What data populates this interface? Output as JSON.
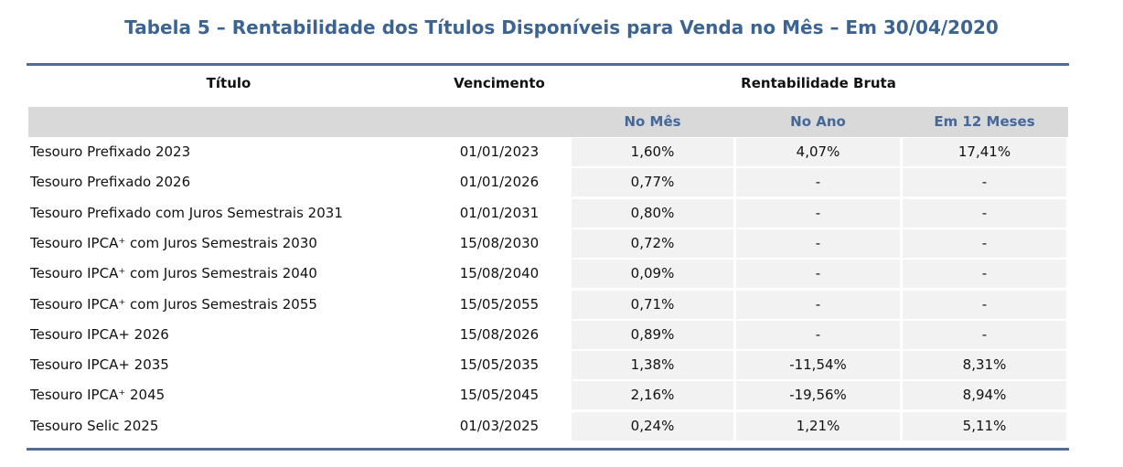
{
  "title": "Tabela 5 – Rentabilidade dos Títulos Disponíveis para Venda no Mês – Em 30/04/2020",
  "table": {
    "headers": [
      "Título",
      "Vencimento",
      "Rentabilidade Bruta"
    ],
    "subheaders": [
      "No Mês",
      "No Ano",
      "Em 12 Meses"
    ],
    "rows": [
      [
        "Tesouro Prefixado 2023",
        "01/01/2023",
        "1,60%",
        "4,07%",
        "17,41%"
      ],
      [
        "Tesouro Prefixado 2026",
        "01/01/2026",
        "0,77%",
        "-",
        "-"
      ],
      [
        "Tesouro Prefixado com Juros Semestrais 2031",
        "01/01/2031",
        "0,80%",
        "-",
        "-"
      ],
      [
        "Tesouro IPCA⁺ com Juros Semestrais 2030",
        "15/08/2030",
        "0,72%",
        "-",
        "-"
      ],
      [
        "Tesouro IPCA⁺ com Juros Semestrais 2040",
        "15/08/2040",
        "0,09%",
        "-",
        "-"
      ],
      [
        "Tesouro IPCA⁺ com Juros Semestrais 2055",
        "15/05/2055",
        "0,71%",
        "-",
        "-"
      ],
      [
        "Tesouro IPCA+ 2026",
        "15/08/2026",
        "0,89%",
        "-",
        "-"
      ],
      [
        "Tesouro IPCA+ 2035",
        "15/05/2035",
        "1,38%",
        "-11,54%",
        "8,31%"
      ],
      [
        "Tesouro IPCA⁺ 2045",
        "15/05/2045",
        "2,16%",
        "-19,56%",
        "8,94%"
      ],
      [
        "Tesouro Selic 2025",
        "01/03/2025",
        "0,24%",
        "1,21%",
        "5,11%"
      ]
    ]
  }
}
